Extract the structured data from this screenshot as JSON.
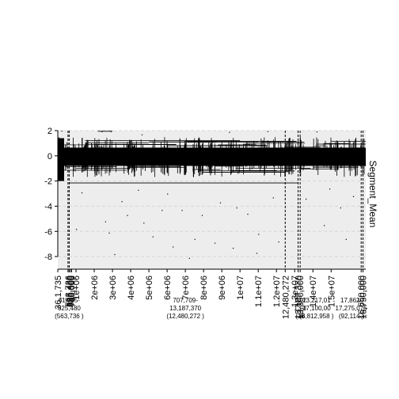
{
  "chart_data": {
    "type": "scatter",
    "title": "",
    "xlabel": "",
    "ylabel": "Segment_Mean",
    "ylabel_position": "right",
    "xlim": [
      0,
      16900000
    ],
    "ylim": [
      -9,
      2
    ],
    "grid": true,
    "y_ticks": [
      {
        "value": 2,
        "label": "2"
      },
      {
        "value": 0,
        "label": "0"
      },
      {
        "value": -2,
        "label": "-2"
      },
      {
        "value": -4,
        "label": "-4"
      },
      {
        "value": -6,
        "label": "-6"
      },
      {
        "value": -8,
        "label": "-8"
      }
    ],
    "x_ticks": [
      {
        "value": 0,
        "label": "36,1,735"
      },
      {
        "value": 560000,
        "label": "563,736"
      },
      {
        "value": 620000,
        "label": "625,480"
      },
      {
        "value": 690000,
        "label": "690,000"
      },
      {
        "value": 760000,
        "label": "760,000"
      },
      {
        "value": 1000000,
        "label": "1e+06"
      },
      {
        "value": 2000000,
        "label": "2e+06"
      },
      {
        "value": 3000000,
        "label": "3e+06"
      },
      {
        "value": 4000000,
        "label": "4e+06"
      },
      {
        "value": 5000000,
        "label": "5e+06"
      },
      {
        "value": 6000000,
        "label": "6e+06"
      },
      {
        "value": 7000000,
        "label": "7e+06"
      },
      {
        "value": 8000000,
        "label": "8e+06"
      },
      {
        "value": 9000000,
        "label": "9e+06"
      },
      {
        "value": 10000000,
        "label": "1e+07"
      },
      {
        "value": 11000000,
        "label": "1.1e+07"
      },
      {
        "value": 12000000,
        "label": "1.2e+07"
      },
      {
        "value": 12480000,
        "label": "12,480,272"
      },
      {
        "value": 13000000,
        "label": "1.3e+07"
      },
      {
        "value": 13187000,
        "label": "13,187,370"
      },
      {
        "value": 13300000,
        "label": "13,300,000"
      },
      {
        "value": 14000000,
        "label": "1.4e+07"
      },
      {
        "value": 15000000,
        "label": "1.5e+07"
      },
      {
        "value": 16650000,
        "label": "16,650,000"
      },
      {
        "value": 16750000,
        "label": "16,750,000"
      }
    ],
    "vlines": [
      560000,
      625000,
      12480000,
      13187000,
      13300000,
      16650000,
      16750000
    ],
    "bottom_annotations": [
      {
        "x": 625000,
        "lines": [
          "61,735-",
          "625,480",
          "(563,736 )"
        ]
      },
      {
        "x": 7000000,
        "lines": [
          "707,709-",
          "13,187,370",
          "(12,480,272 )"
        ]
      },
      {
        "x": 13300000,
        "lines": [
          "13,2",
          "13,3",
          "(16"
        ]
      },
      {
        "x": 14200000,
        "lines": [
          "13,217,01",
          "17,100,00",
          "(3,812,958 )"
        ]
      },
      {
        "x": 16100000,
        "lines": [
          "17,862-",
          "17,275,075",
          "(92,114 )"
        ]
      }
    ],
    "series": [
      {
        "points": [
          [
            200000,
            2.0
          ],
          [
            210000,
            -1.9
          ],
          [
            2400000,
            1.95
          ],
          [
            2900000,
            1.96
          ],
          [
            4600000,
            1.7
          ],
          [
            9400000,
            1.9
          ],
          [
            11500000,
            1.96
          ],
          [
            14200000,
            1.94
          ],
          [
            1300000,
            -2.9
          ],
          [
            3500000,
            -3.6
          ],
          [
            2600000,
            -5.2
          ],
          [
            3800000,
            -4.7
          ],
          [
            4700000,
            -5.3
          ],
          [
            5700000,
            -4.3
          ],
          [
            6800000,
            -4.3
          ],
          [
            7900000,
            -4.7
          ],
          [
            8900000,
            -3.7
          ],
          [
            9800000,
            -4.1
          ],
          [
            10400000,
            -4.6
          ],
          [
            1000000,
            -5.8
          ],
          [
            2800000,
            -6.1
          ],
          [
            5200000,
            -6.4
          ],
          [
            6300000,
            -7.2
          ],
          [
            7500000,
            -6.6
          ],
          [
            8600000,
            -6.9
          ],
          [
            9600000,
            -7.3
          ],
          [
            11000000,
            -6.2
          ],
          [
            12100000,
            -6.8
          ],
          [
            13600000,
            -3.4
          ],
          [
            14900000,
            -2.6
          ],
          [
            15500000,
            -4.1
          ],
          [
            16200000,
            -3.2
          ],
          [
            3100000,
            -7.8
          ],
          [
            7200000,
            -8.1
          ],
          [
            10900000,
            -7.7
          ],
          [
            4400000,
            -2.7
          ],
          [
            6000000,
            -3.0
          ],
          [
            11800000,
            -3.3
          ],
          [
            14600000,
            -5.5
          ],
          [
            15800000,
            -6.6
          ]
        ]
      }
    ],
    "segments": [
      {
        "x0": 620000,
        "x1": 13200000,
        "y": -2.15
      },
      {
        "x0": 1500000,
        "x1": 10000000,
        "y": 1.2
      },
      {
        "x0": 5000000,
        "x1": 11000000,
        "y": 1.1
      },
      {
        "x0": 2000000,
        "x1": 6500000,
        "y": 0.9
      },
      {
        "x0": 6000000,
        "x1": 11500000,
        "y": 0.8
      },
      {
        "x0": 7000000,
        "x1": 13100000,
        "y": 1.15
      },
      {
        "x0": 9500000,
        "x1": 13000000,
        "y": -1.2
      },
      {
        "x0": 8000000,
        "x1": 12500000,
        "y": -1.3
      },
      {
        "x0": 1000000,
        "x1": 4000000,
        "y": -1.0
      },
      {
        "x0": 14000000,
        "x1": 16500000,
        "y": -0.9
      },
      {
        "x0": 13500000,
        "x1": 15500000,
        "y": 0.6
      },
      {
        "x0": 2200000,
        "x1": 3000000,
        "y": 1.95
      }
    ]
  }
}
